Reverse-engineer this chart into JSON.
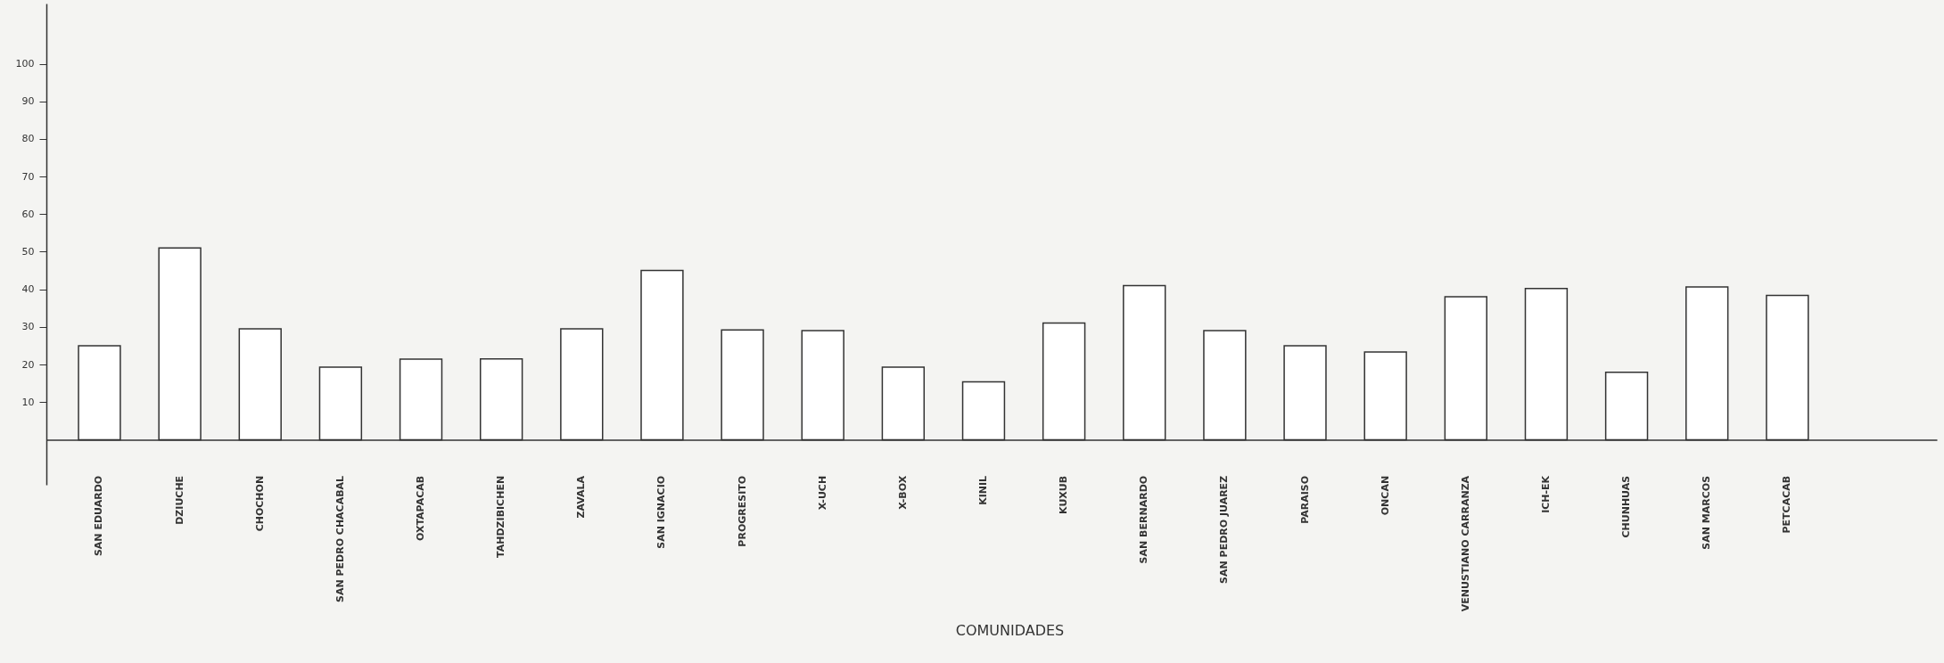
{
  "chart_data": {
    "type": "bar",
    "xlabel": "COMUNIDADES",
    "categories": [
      "SAN EDUARDO",
      "DZIUCHE",
      "CHOCHON",
      "SAN PEDRO CHACABAL",
      "OXTAPACAB",
      "TAHDZIBICHEN",
      "ZAVALA",
      "SAN IGNACIO",
      "PROGRESITO",
      "X-UCH",
      "X-BOX",
      "KINIL",
      "KUXUB",
      "SAN BERNARDO",
      "SAN PEDRO JUAREZ",
      "PARAISO",
      "ONCAN",
      "VENUSTIANO CARRANZA",
      "ICH-EK",
      "CHUNHUAS",
      "SAN MARCOS",
      "PETCACAB"
    ],
    "values": [
      25,
      51,
      29.5,
      19.3,
      21.4,
      21.5,
      29.5,
      45,
      29.2,
      29,
      19.3,
      15.4,
      31,
      41,
      29,
      25,
      23.3,
      38,
      40.2,
      17.9,
      40.6,
      38.4
    ],
    "color": "#ffffff",
    "ylim": [
      -12,
      116
    ],
    "yticks": [
      10,
      20,
      30,
      40,
      50,
      60,
      70,
      80,
      90,
      100
    ],
    "grid": false
  }
}
